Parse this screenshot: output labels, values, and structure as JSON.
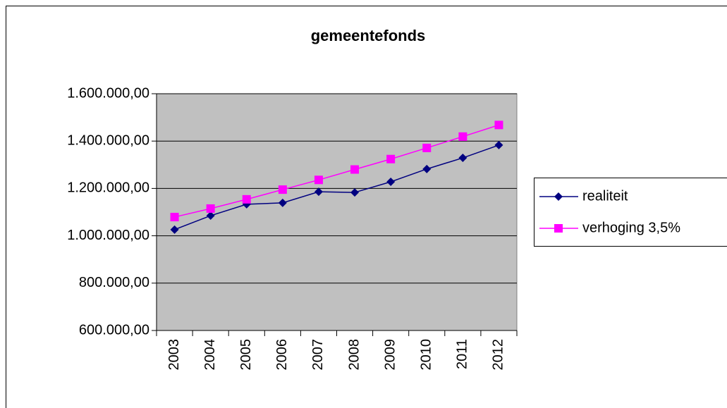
{
  "chart_data": {
    "type": "line",
    "title": "gemeentefonds",
    "categories": [
      "2003",
      "2004",
      "2005",
      "2006",
      "2007",
      "2008",
      "2009",
      "2010",
      "2011",
      "2012"
    ],
    "series": [
      {
        "name": "realiteit",
        "color": "#000080",
        "marker": "diamond",
        "values": [
          1026000,
          1085000,
          1133000,
          1139000,
          1186000,
          1183000,
          1228000,
          1282000,
          1329000,
          1383000
        ]
      },
      {
        "name": "verhoging 3,5%",
        "color": "#ff00ff",
        "marker": "square",
        "values": [
          1079000,
          1115000,
          1154000,
          1195000,
          1236000,
          1280000,
          1324000,
          1371000,
          1419000,
          1468000
        ]
      }
    ],
    "ylim": [
      600000,
      1600000
    ],
    "yticks": [
      {
        "value": 600000,
        "label": "600.000,00"
      },
      {
        "value": 800000,
        "label": "800.000,00"
      },
      {
        "value": 1000000,
        "label": "1.000.000,00"
      },
      {
        "value": 1200000,
        "label": "1.200.000,00"
      },
      {
        "value": 1400000,
        "label": "1.400.000,00"
      },
      {
        "value": 1600000,
        "label": "1.600.000,00"
      }
    ],
    "grid": true,
    "plot_background": "#c0c0c0",
    "legend": "right"
  }
}
